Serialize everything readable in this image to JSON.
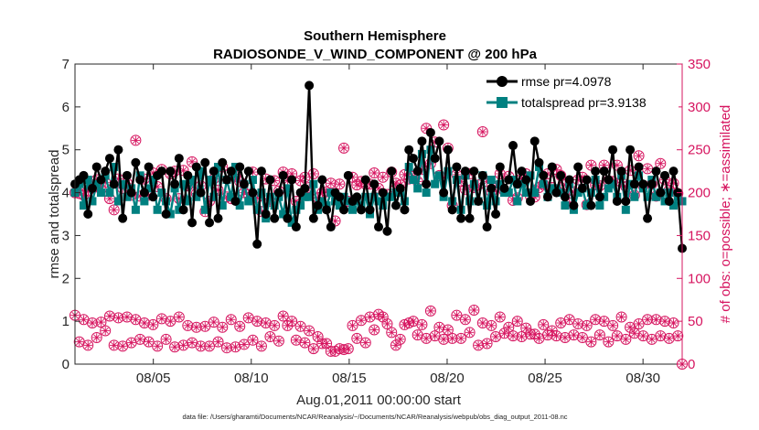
{
  "colors": {
    "rmse": "#000000",
    "spread": "#008080",
    "obs": "#d6145f",
    "axis": "#262626"
  },
  "chart_data": {
    "type": "line",
    "title_line1": "Southern Hemisphere",
    "title_line2": "RADIOSONDE_V_WIND_COMPONENT @ 200 hPa",
    "xlabel": "Aug.01,2011 00:00:00 start",
    "ylabel_left": "rmse and totalspread",
    "ylabel_right": "# of obs: o=possible; ∗=assimilated",
    "footer": "data file: /Users/gharamti/Documents/NCAR/Reanalysis/~/Documents/NCAR/Reanalysis/webpub/obs_diag_output_2011-08.nc",
    "xlim": [
      1,
      32
    ],
    "ylim_left": [
      0,
      7
    ],
    "ylim_right": [
      0,
      350
    ],
    "x_ticks": [
      5,
      10,
      15,
      20,
      25,
      30
    ],
    "x_tick_labels": [
      "08/05",
      "08/10",
      "08/15",
      "08/20",
      "08/25",
      "08/30"
    ],
    "y_left_ticks": [
      "0",
      "1",
      "2",
      "3",
      "4",
      "5",
      "6",
      "7"
    ],
    "y_right_ticks": [
      "0",
      "50",
      "100",
      "150",
      "200",
      "250",
      "300",
      "350"
    ],
    "legend": {
      "rmse_label": "rmse pr=4.0978",
      "spread_label": "totalspread pr=3.9138"
    },
    "series": [
      {
        "name": "rmse",
        "values": [
          4.2,
          4.3,
          4.4,
          3.5,
          4.1,
          4.6,
          4.3,
          4.5,
          4.8,
          4.2,
          5.0,
          3.4,
          4.4,
          4.0,
          4.7,
          4.3,
          4.0,
          4.6,
          3.9,
          4.4,
          4.5,
          3.5,
          4.5,
          4.2,
          4.8,
          3.6,
          4.4,
          3.3,
          4.6,
          4.0,
          4.7,
          3.3,
          4.5,
          3.4,
          4.7,
          4.3,
          4.5,
          3.8,
          4.6,
          4.2,
          4.5,
          4.0,
          2.8,
          4.5,
          3.5,
          4.3,
          3.4,
          4.0,
          4.4,
          3.4,
          4.3,
          3.2,
          4.0,
          4.1,
          6.5,
          3.4,
          3.7,
          4.3,
          3.6,
          3.2,
          4.0,
          3.9,
          3.6,
          4.4,
          3.8,
          3.9,
          3.6,
          4.3,
          3.6,
          4.2,
          3.2,
          4.0,
          3.1,
          4.5,
          3.7,
          4.1,
          3.6,
          5.0,
          4.8,
          4.5,
          5.2,
          4.2,
          5.4,
          4.8,
          5.2,
          4.0,
          5.0,
          3.6,
          4.6,
          3.4,
          4.5,
          3.4,
          4.5,
          3.8,
          4.4,
          3.2,
          4.1,
          3.5,
          4.6,
          4.1,
          4.3,
          5.1,
          4.2,
          4.5,
          4.3,
          3.8,
          5.2,
          4.7,
          4.4,
          3.9,
          4.6,
          4.0,
          4.4,
          3.9,
          4.3,
          3.7,
          4.6,
          4.1,
          4.3,
          3.7,
          4.5,
          3.9,
          4.5,
          4.3,
          5.0,
          3.8,
          4.5,
          3.8,
          5.0,
          4.2,
          4.6,
          4.2,
          3.4,
          4.2,
          4.5,
          4.0,
          4.4,
          3.8,
          4.5,
          4.0,
          2.7
        ]
      },
      {
        "name": "totalspread",
        "values": [
          4.0,
          4.2,
          3.7,
          4.3,
          3.8,
          4.2,
          4.0,
          4.4,
          4.0,
          4.6,
          3.8,
          4.2,
          3.9,
          4.1,
          3.6,
          4.4,
          3.8,
          4.1,
          4.3,
          3.6,
          4.0,
          3.8,
          3.5,
          4.1,
          3.6,
          4.2,
          3.8,
          4.3,
          3.9,
          4.5,
          3.6,
          4.3,
          3.9,
          4.6,
          3.7,
          4.3,
          3.9,
          4.6,
          3.7,
          4.2,
          3.8,
          4.3,
          3.6,
          4.0,
          3.4,
          3.9,
          3.7,
          3.9,
          3.5,
          4.1,
          3.3,
          3.6,
          3.7,
          3.9,
          3.9,
          4.2,
          3.6,
          3.8,
          3.7,
          4.0,
          3.8,
          3.7,
          3.9,
          3.8,
          3.6,
          3.8,
          3.7,
          3.9,
          3.5,
          3.9,
          3.8,
          3.7,
          3.9,
          3.9,
          4.0,
          4.0,
          3.8,
          4.6,
          4.3,
          4.1,
          4.9,
          4.0,
          5.0,
          4.2,
          4.4,
          3.9,
          4.5,
          3.8,
          4.3,
          3.6,
          4.4,
          3.8,
          4.2,
          3.8,
          4.4,
          3.7,
          4.3,
          3.8,
          4.2,
          4.0,
          4.0,
          4.3,
          3.8,
          4.2,
          4.0,
          4.4,
          4.0,
          4.6,
          4.2,
          3.9,
          4.1,
          4.1,
          4.0,
          3.7,
          4.2,
          3.6,
          4.0,
          4.1,
          3.7,
          4.0,
          4.3,
          3.7,
          3.9,
          4.1,
          4.2,
          3.9,
          4.4,
          3.6,
          4.2,
          3.9,
          4.4,
          4.1,
          3.9,
          4.3,
          3.9,
          4.0,
          3.8,
          4.0,
          3.7,
          3.9,
          3.8
        ]
      },
      {
        "name": "obs_possible_upper",
        "values": [
          200,
          199,
          197,
          202,
          205,
          215,
          204,
          212,
          193,
          180,
          216,
          205,
          211,
          197,
          261,
          196,
          216,
          197,
          223,
          207,
          227,
          193,
          222,
          225,
          193,
          226,
          208,
          236,
          199,
          208,
          178,
          190,
          216,
          203,
          230,
          195,
          193,
          219,
          213,
          200,
          198,
          224,
          194,
          178,
          216,
          190,
          214,
          202,
          224,
          214,
          222,
          190,
          214,
          218,
          206,
          222,
          194,
          200,
          201,
          211,
          167,
          210,
          252,
          190,
          218,
          209,
          213,
          210,
          210,
          223,
          205,
          218,
          198,
          224,
          211,
          209,
          221,
          216,
          219,
          213,
          227,
          275,
          234,
          259,
          220,
          279,
          252,
          185,
          221,
          213,
          204,
          222,
          206,
          209,
          271,
          213,
          201,
          207,
          222,
          202,
          219,
          191,
          194,
          216,
          222,
          196,
          195,
          206,
          210,
          222,
          206,
          227,
          220,
          209,
          188,
          201,
          215,
          218,
          186,
          232,
          209,
          208,
          232,
          214,
          213,
          232,
          212,
          207,
          226,
          197,
          243,
          208,
          228,
          210,
          196,
          234,
          215,
          203,
          211,
          199
        ]
      },
      {
        "name": "obs_possible_lower",
        "values": [
          57,
          26,
          52,
          22,
          48,
          31,
          49,
          39,
          56,
          22,
          54,
          21,
          55,
          25,
          52,
          29,
          48,
          26,
          46,
          21,
          53,
          29,
          50,
          20,
          55,
          22,
          45,
          25,
          43,
          21,
          44,
          21,
          49,
          26,
          43,
          19,
          52,
          20,
          44,
          23,
          54,
          28,
          50,
          21,
          48,
          32,
          45,
          27,
          56,
          45,
          50,
          28,
          44,
          25,
          39,
          18,
          32,
          24,
          24,
          15,
          15,
          18,
          17,
          18,
          45,
          30,
          51,
          25,
          55,
          40,
          58,
          55,
          47,
          37,
          22,
          29,
          46,
          48,
          50,
          34,
          46,
          30,
          62,
          33,
          43,
          29,
          40,
          30,
          57,
          30,
          52,
          37,
          63,
          22,
          48,
          24,
          45,
          32,
          55,
          36,
          43,
          33,
          50,
          32,
          42,
          35,
          35,
          30,
          46,
          34,
          39,
          33,
          48,
          31,
          52,
          34,
          47,
          31,
          45,
          26,
          52,
          34,
          50,
          26,
          45,
          33,
          55,
          29,
          43,
          36,
          47,
          33,
          52,
          29,
          52,
          33,
          50,
          30,
          48,
          33
        ]
      }
    ]
  }
}
